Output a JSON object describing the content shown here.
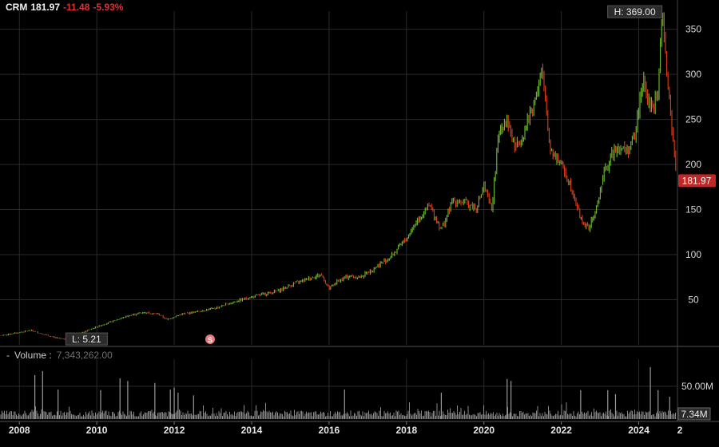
{
  "quote": {
    "symbol": "CRM",
    "last": "181.97",
    "change": "-11.48",
    "change_pct": "-5.93%"
  },
  "labels": {
    "high": "H: 369.00",
    "low": "L: 5.21",
    "last_price_tag": "181.97",
    "split_marker": "S",
    "volume_title": "Volume",
    "volume_colon": ":",
    "volume_value": "7,343,262.00",
    "volume_last_tag": "7.34M"
  },
  "colors": {
    "up": "#6fbf2f",
    "down": "#e0401c",
    "last_tag": "#c42525",
    "grid": "#2a2a2a",
    "volume": "#8a8a8a"
  },
  "chart_data": [
    {
      "type": "line",
      "style": "candlestick",
      "title": "",
      "x_unit": "year",
      "x_ticks": [
        "2008",
        "2010",
        "2012",
        "2014",
        "2016",
        "2018",
        "2020",
        "2022",
        "2024",
        "2"
      ],
      "y_ticks": [
        "50",
        "100",
        "150",
        "200",
        "250",
        "300",
        "350"
      ],
      "ylim": [
        0,
        370
      ],
      "xlim": [
        2007.5,
        2025.0
      ],
      "high_point": {
        "x": 2024.6,
        "y": 369.0
      },
      "low_point": {
        "x": 2009.2,
        "y": 5.21
      },
      "last": {
        "x": 2025.0,
        "y": 181.97
      },
      "series": [
        {
          "x": [
            2007.5,
            2007.9,
            2008.3,
            2008.6,
            2008.9,
            2009.2,
            2009.6,
            2010.0,
            2010.4,
            2010.8,
            2011.2,
            2011.6,
            2011.8,
            2012.2,
            2012.6,
            2013.0,
            2013.5,
            2013.9,
            2014.3,
            2014.7,
            2015.1,
            2015.5,
            2015.8,
            2016.0,
            2016.2,
            2016.5,
            2016.8,
            2017.2,
            2017.6,
            2018.0,
            2018.3,
            2018.6,
            2018.9,
            2019.2,
            2019.5,
            2019.8,
            2020.0,
            2020.2,
            2020.4,
            2020.6,
            2020.8,
            2021.0,
            2021.3,
            2021.5,
            2021.7,
            2022.0,
            2022.3,
            2022.5,
            2022.7,
            2022.9,
            2023.1,
            2023.4,
            2023.7,
            2023.9,
            2024.1,
            2024.3,
            2024.5,
            2024.6,
            2024.8,
            2025.0
          ],
          "y": [
            10,
            13,
            16,
            12,
            8,
            6,
            13,
            20,
            26,
            32,
            36,
            34,
            28,
            34,
            37,
            40,
            47,
            52,
            56,
            60,
            68,
            74,
            78,
            62,
            70,
            76,
            75,
            86,
            98,
            118,
            140,
            154,
            128,
            160,
            158,
            152,
            175,
            150,
            240,
            250,
            218,
            232,
            270,
            305,
            220,
            200,
            170,
            140,
            128,
            150,
            190,
            220,
            215,
            230,
            295,
            260,
            280,
            369,
            262,
            182
          ]
        }
      ]
    },
    {
      "type": "bar",
      "title": "Volume",
      "y_ticks": [
        "50.00M"
      ],
      "ylim": [
        0,
        85
      ],
      "units": "M",
      "spikes": [
        {
          "x": 2008.4,
          "y": 67
        },
        {
          "x": 2008.6,
          "y": 73
        },
        {
          "x": 2009.0,
          "y": 45
        },
        {
          "x": 2010.1,
          "y": 44
        },
        {
          "x": 2010.6,
          "y": 62
        },
        {
          "x": 2010.8,
          "y": 58
        },
        {
          "x": 2011.5,
          "y": 55
        },
        {
          "x": 2011.9,
          "y": 45
        },
        {
          "x": 2012.0,
          "y": 48
        },
        {
          "x": 2012.1,
          "y": 40
        },
        {
          "x": 2012.5,
          "y": 36
        },
        {
          "x": 2016.4,
          "y": 45
        },
        {
          "x": 2018.9,
          "y": 40
        },
        {
          "x": 2020.6,
          "y": 61
        },
        {
          "x": 2020.7,
          "y": 58
        },
        {
          "x": 2022.5,
          "y": 44
        },
        {
          "x": 2023.2,
          "y": 44
        },
        {
          "x": 2023.4,
          "y": 38
        },
        {
          "x": 2024.3,
          "y": 79
        },
        {
          "x": 2024.5,
          "y": 44
        },
        {
          "x": 2024.8,
          "y": 34
        }
      ],
      "last_value": 7.34
    }
  ]
}
